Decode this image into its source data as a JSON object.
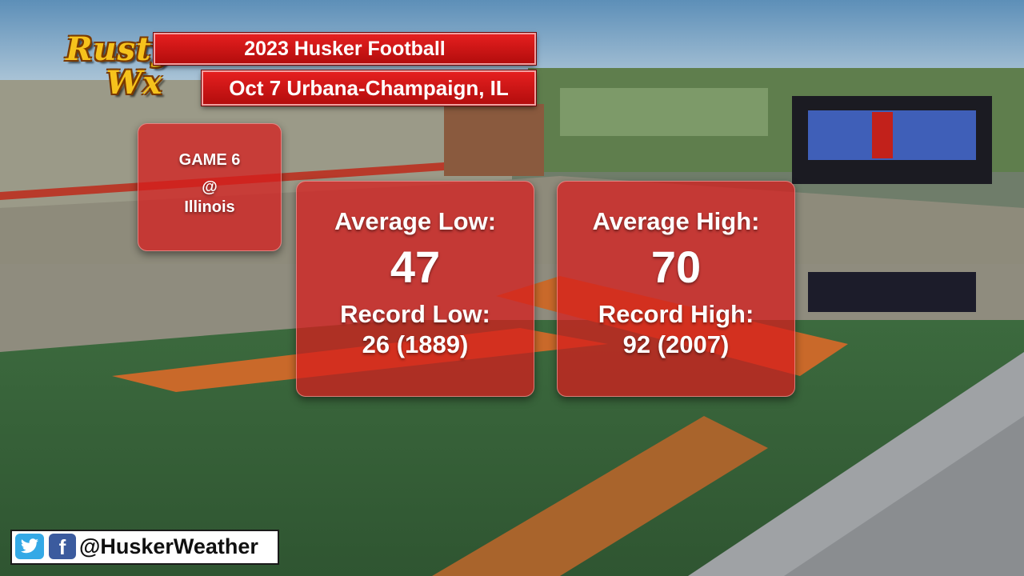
{
  "logo": {
    "line1": "Rusty",
    "line2": "Wx"
  },
  "banner": {
    "title": "2023 Husker Football",
    "subtitle": "Oct 7  Urbana-Champaign, IL"
  },
  "game": {
    "label": "GAME 6",
    "at": "@",
    "opponent": "Illinois"
  },
  "low": {
    "label": "Average Low:",
    "value": "47",
    "record_label": "Record Low:",
    "record_value": "26 (1889)"
  },
  "high": {
    "label": "Average High:",
    "value": "70",
    "record_label": "Record High:",
    "record_value": "92 (2007)"
  },
  "social": {
    "handle": "@HuskerWeather",
    "icons": [
      "twitter-icon",
      "facebook-icon"
    ]
  },
  "colors": {
    "card_red": "#d61c1c",
    "banner_red": "#cc1414",
    "logo_gold": "#f6c21c"
  }
}
